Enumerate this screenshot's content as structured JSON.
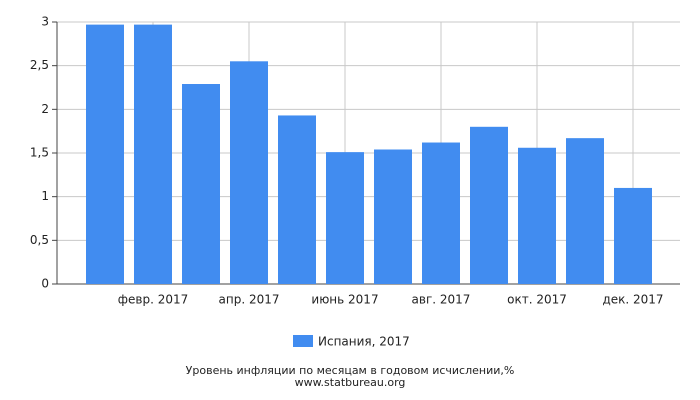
{
  "chart_data": {
    "type": "bar",
    "title": "Уровень инфляции по месяцам в годовом исчислении,%",
    "subtitle": "www.statbureau.org",
    "categories": [
      null,
      "февр. 2017",
      null,
      "апр. 2017",
      null,
      "июнь 2017",
      null,
      "авг. 2017",
      null,
      "окт. 2017",
      null,
      "дек. 2017"
    ],
    "series": [
      {
        "name": "Испания, 2017",
        "color": "#418cf0",
        "values": [
          2.97,
          2.97,
          2.29,
          2.55,
          1.93,
          1.51,
          1.54,
          1.62,
          1.8,
          1.56,
          1.67,
          1.1
        ]
      }
    ],
    "ylim": [
      0,
      3
    ],
    "yticks": [
      0,
      {
        "value": 0.5,
        "label": "0,5"
      },
      1,
      {
        "value": 1.5,
        "label": "1,5"
      },
      2,
      {
        "value": 2.5,
        "label": "2,5"
      },
      3
    ],
    "grid": true
  }
}
